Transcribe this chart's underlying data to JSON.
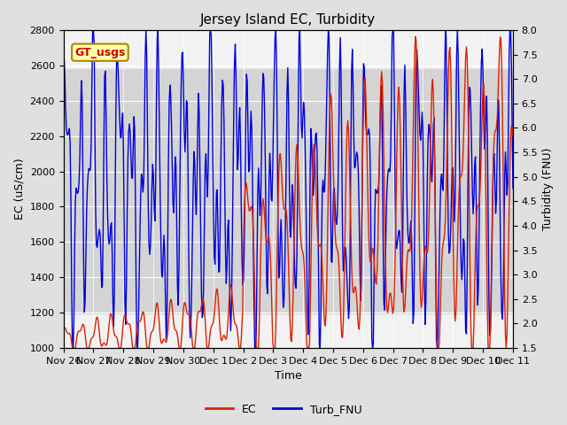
{
  "title": "Jersey Island EC, Turbidity",
  "xlabel": "Time",
  "ylabel_left": "EC (uS/cm)",
  "ylabel_right": "Turbidity (FNU)",
  "gt_label": "GT_usgs",
  "legend_entries": [
    "EC",
    "Turb_FNU"
  ],
  "ec_color": "#dd2200",
  "turb_color": "#0000dd",
  "ylim_left": [
    1000,
    2800
  ],
  "ylim_right": [
    1.5,
    8.0
  ],
  "yticks_left": [
    1000,
    1200,
    1400,
    1600,
    1800,
    2000,
    2200,
    2400,
    2600,
    2800
  ],
  "yticks_right": [
    1.5,
    2.0,
    2.5,
    3.0,
    3.5,
    4.0,
    4.5,
    5.0,
    5.5,
    6.0,
    6.5,
    7.0,
    7.5,
    8.0
  ],
  "bg_outer": "#e0e0e0",
  "bg_inner": "#f2f2f2",
  "band_color": "#d4d4d4",
  "band_lo": 2.2,
  "band_hi": 7.2,
  "xtick_labels": [
    "Nov 26",
    "Nov 27",
    "Nov 28",
    "Nov 29",
    "Nov 30",
    "Dec 1",
    "Dec 2",
    "Dec 3",
    "Dec 4",
    "Dec 5",
    "Dec 6",
    "Dec 7",
    "Dec 8",
    "Dec 9",
    "Dec 10",
    "Dec 11"
  ],
  "num_points": 600,
  "figwidth": 6.4,
  "figheight": 4.8,
  "dpi": 100
}
